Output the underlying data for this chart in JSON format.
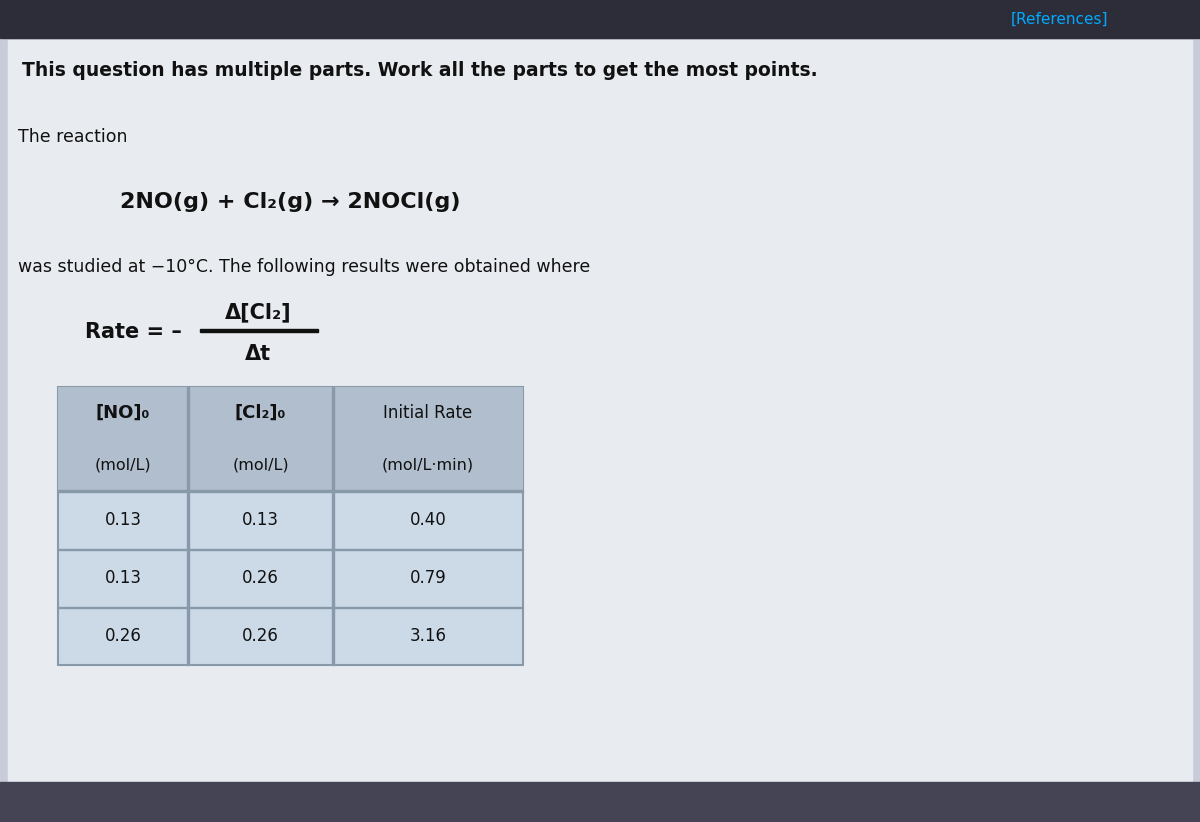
{
  "bg_top_bar": "#2d2d3a",
  "bg_main": "#c8ccd8",
  "bg_content": "#e8ecf0",
  "references_text": "[References]",
  "references_color": "#00aaff",
  "header_text": "This question has multiple parts. Work all the parts to get the most points.",
  "the_reaction_label": "The reaction",
  "equation": "2NO(g) + Cl₂(g) → 2NOCl(g)",
  "studied_text": "was studied at −10°C. The following results were obtained where",
  "rate_label": "Rate = –",
  "rate_numerator": "Δ[Cl₂]",
  "rate_denominator": "Δt",
  "table_header_col1": "[NO]₀",
  "table_header_col2": "[Cl₂]₀",
  "table_header_col3": "Initial Rate",
  "table_subheader_col1": "(mol/L)",
  "table_subheader_col2": "(mol/L)",
  "table_subheader_col3": "(mol/L·min)",
  "table_data": [
    [
      "0.13",
      "0.13",
      "0.40"
    ],
    [
      "0.13",
      "0.26",
      "0.79"
    ],
    [
      "0.26",
      "0.26",
      "3.16"
    ]
  ],
  "table_header_bg": "#b0bece",
  "table_row_bg": "#ccdae8",
  "table_border": "#8899aa",
  "text_color": "#111111",
  "bottom_bar_color": "#444455"
}
